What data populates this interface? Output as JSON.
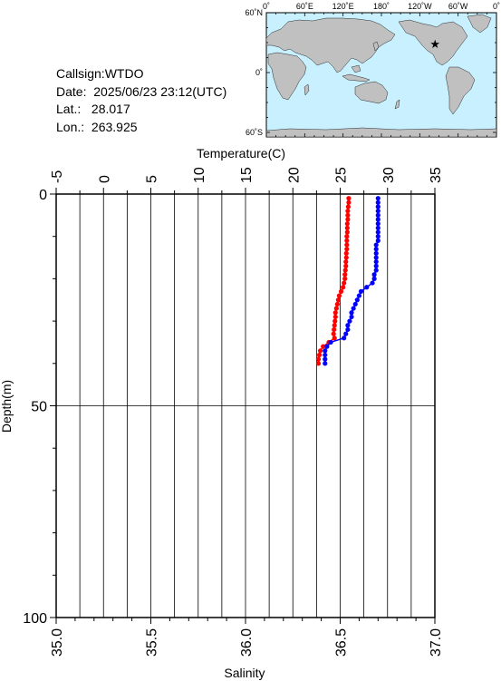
{
  "station": {
    "callsign": "Callsign:WTDO",
    "date": "Date:  2025/06/23 23:12(UTC)",
    "lat": "Lat.:   28.017",
    "lon": "Lon.:  263.925"
  },
  "map": {
    "lon_labels": [
      "0˚",
      "60˚E",
      "120˚E",
      "180˚",
      "120˚W",
      "60˚W",
      "0˚"
    ],
    "lat_labels": [
      "60˚N",
      "0˚",
      "60˚S"
    ],
    "ocean_color": "#c8f0ff",
    "land_color": "#c0c0c0",
    "marker": {
      "lon": 263.925,
      "lat": 28.017,
      "color": "#ff0000",
      "symbol": "star"
    }
  },
  "chart_data": {
    "type": "scatter",
    "ylabel": "Depth(m)",
    "y_ticks": [
      "0",
      "50",
      "100"
    ],
    "ylim": [
      0,
      100
    ],
    "y_inverted": true,
    "top_axis": {
      "label": "Temperature(C)",
      "range": [
        -5,
        35
      ],
      "ticks": [
        "-5",
        "0",
        "5",
        "10",
        "15",
        "20",
        "25",
        "30",
        "35"
      ]
    },
    "bottom_axis": {
      "label": "Salinity",
      "range": [
        35.0,
        37.0
      ],
      "ticks": [
        "35.0",
        "35.5",
        "36.0",
        "36.5",
        "37.0"
      ]
    },
    "grid": true,
    "series": [
      {
        "axis": "temperature",
        "color": "#ff0000",
        "points": [
          [
            25.9,
            1
          ],
          [
            25.9,
            2
          ],
          [
            25.85,
            3
          ],
          [
            25.8,
            4
          ],
          [
            25.8,
            5
          ],
          [
            25.8,
            6
          ],
          [
            25.75,
            7
          ],
          [
            25.75,
            8
          ],
          [
            25.75,
            9
          ],
          [
            25.7,
            10
          ],
          [
            25.7,
            11
          ],
          [
            25.7,
            12
          ],
          [
            25.7,
            13
          ],
          [
            25.65,
            14
          ],
          [
            25.65,
            15
          ],
          [
            25.6,
            16
          ],
          [
            25.6,
            17
          ],
          [
            25.55,
            18
          ],
          [
            25.5,
            19
          ],
          [
            25.5,
            20
          ],
          [
            25.4,
            21
          ],
          [
            25.3,
            22
          ],
          [
            25.1,
            23
          ],
          [
            24.9,
            24
          ],
          [
            24.8,
            25
          ],
          [
            24.7,
            26
          ],
          [
            24.6,
            27
          ],
          [
            24.5,
            28
          ],
          [
            24.5,
            29
          ],
          [
            24.45,
            30
          ],
          [
            24.4,
            31
          ],
          [
            24.35,
            32
          ],
          [
            24.3,
            33
          ],
          [
            24.4,
            34
          ],
          [
            23.8,
            35
          ],
          [
            23.2,
            36
          ],
          [
            22.9,
            37
          ],
          [
            22.8,
            38
          ],
          [
            22.7,
            39
          ],
          [
            22.7,
            40
          ]
        ]
      },
      {
        "axis": "salinity",
        "color": "#0000ff",
        "points": [
          [
            36.7,
            1
          ],
          [
            36.7,
            2
          ],
          [
            36.7,
            3
          ],
          [
            36.7,
            4
          ],
          [
            36.7,
            5
          ],
          [
            36.7,
            6
          ],
          [
            36.7,
            7
          ],
          [
            36.7,
            8
          ],
          [
            36.7,
            9
          ],
          [
            36.7,
            10
          ],
          [
            36.7,
            11
          ],
          [
            36.69,
            12
          ],
          [
            36.69,
            13
          ],
          [
            36.69,
            14
          ],
          [
            36.69,
            15
          ],
          [
            36.69,
            16
          ],
          [
            36.69,
            17
          ],
          [
            36.69,
            18
          ],
          [
            36.68,
            19
          ],
          [
            36.68,
            20
          ],
          [
            36.67,
            21
          ],
          [
            36.64,
            22
          ],
          [
            36.61,
            23
          ],
          [
            36.6,
            24
          ],
          [
            36.59,
            25
          ],
          [
            36.58,
            26
          ],
          [
            36.57,
            27
          ],
          [
            36.56,
            28
          ],
          [
            36.56,
            29
          ],
          [
            36.55,
            30
          ],
          [
            36.54,
            31
          ],
          [
            36.54,
            32
          ],
          [
            36.53,
            33
          ],
          [
            36.52,
            34
          ],
          [
            36.45,
            35
          ],
          [
            36.43,
            36
          ],
          [
            36.42,
            37
          ],
          [
            36.42,
            38
          ],
          [
            36.42,
            39
          ],
          [
            36.42,
            40
          ]
        ]
      }
    ]
  }
}
